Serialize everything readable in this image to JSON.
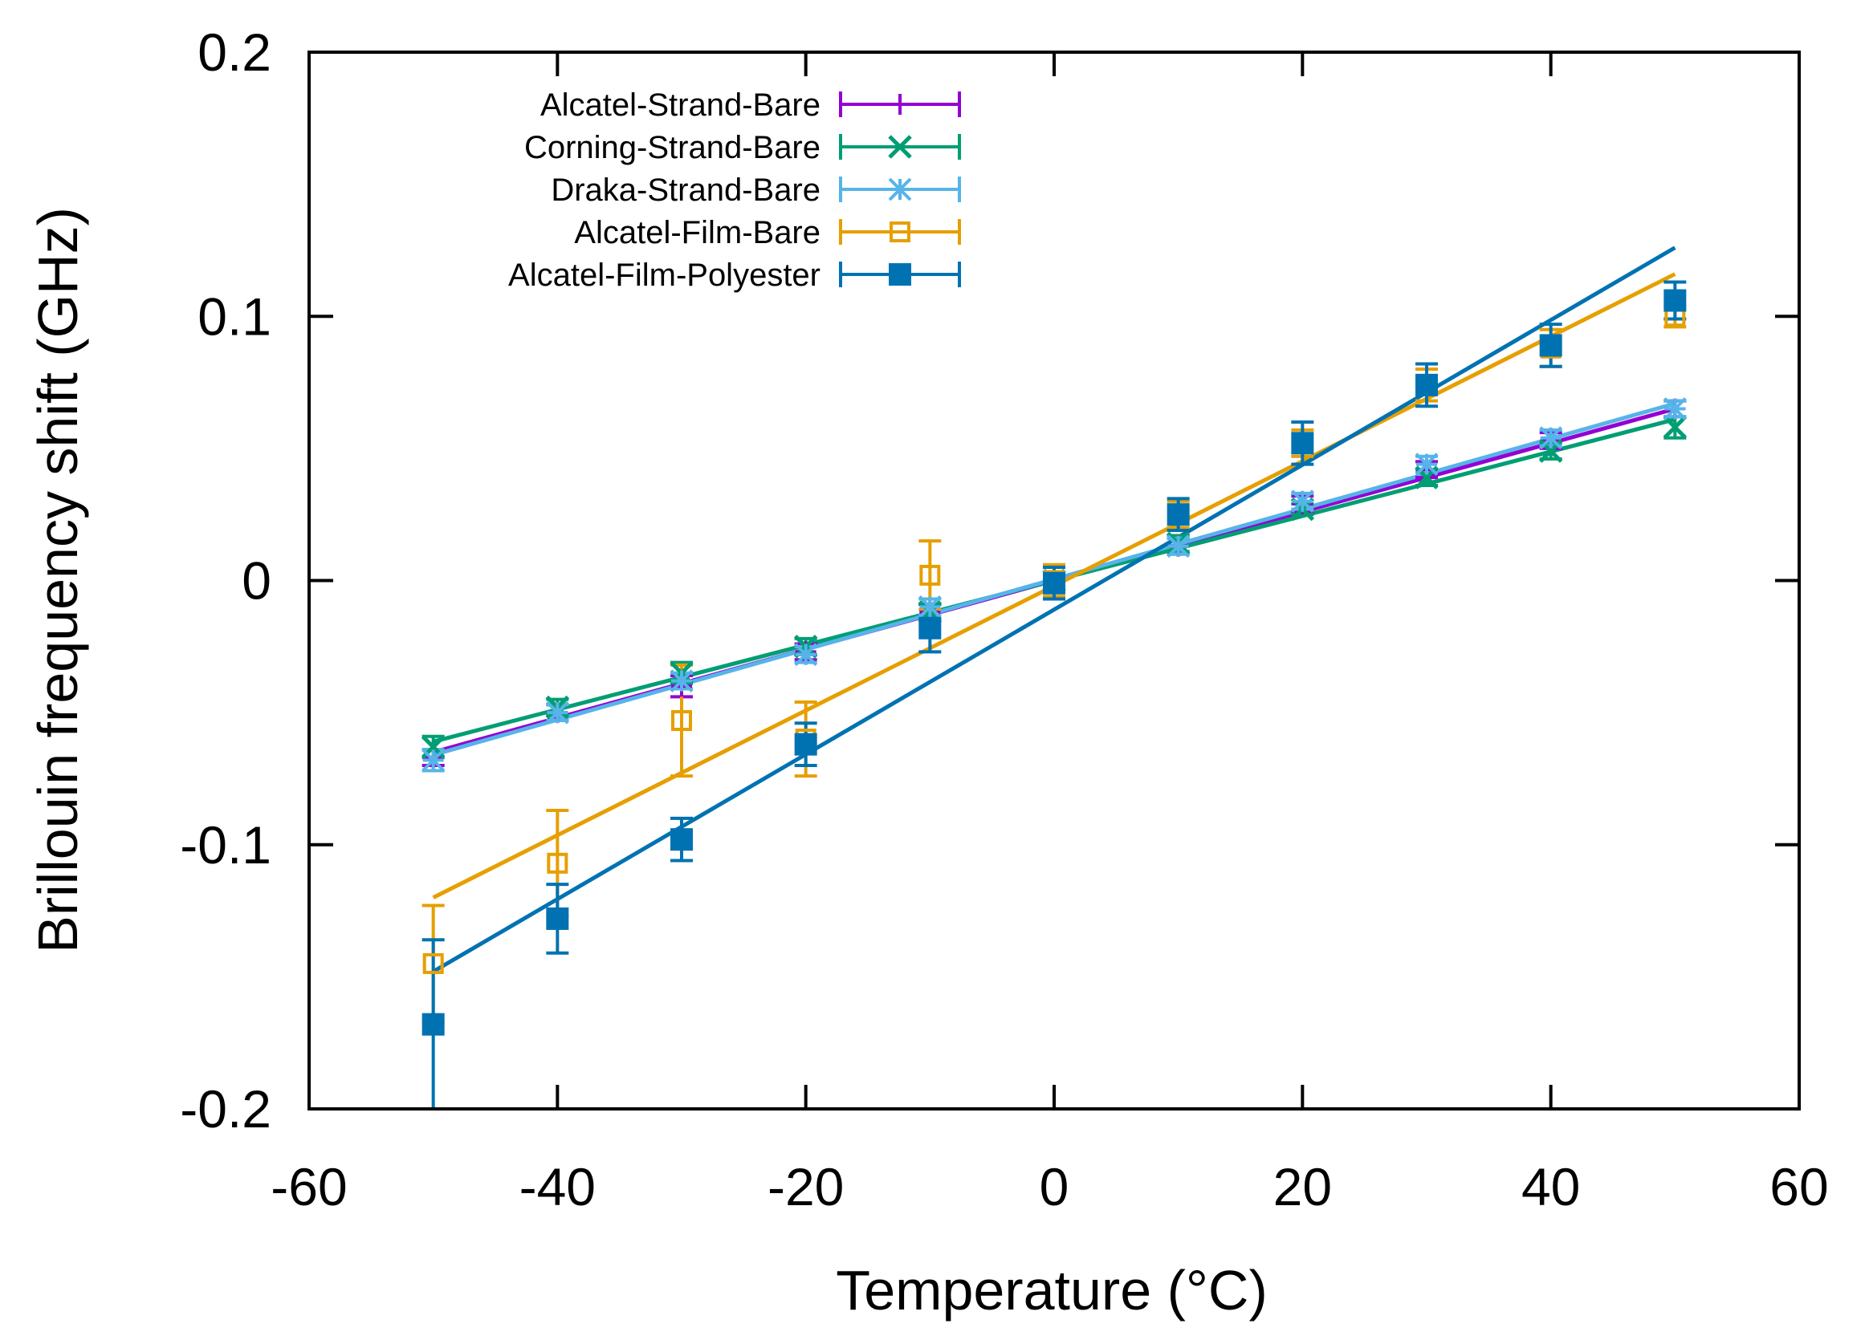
{
  "chart_data": {
    "type": "scatter",
    "title": "",
    "xlabel": "Temperature (°C)",
    "ylabel": "Brillouin frequency shift (GHz)",
    "xlim": [
      -60,
      60
    ],
    "ylim": [
      -0.2,
      0.2
    ],
    "xticks": [
      -60,
      -40,
      -20,
      0,
      20,
      40,
      60
    ],
    "yticks": [
      -0.2,
      -0.1,
      0,
      0.1,
      0.2
    ],
    "xtick_labels": [
      "-60",
      "-40",
      "-20",
      "0",
      "20",
      "40",
      "60"
    ],
    "ytick_labels": [
      "-0.2",
      "-0.1",
      "0",
      "0.1",
      "0.2"
    ],
    "grid": false,
    "legend_position": "top-left",
    "series": [
      {
        "name": "Alcatel-Strand-Bare",
        "color": "#9400D3",
        "marker": "plus",
        "x": [
          -50,
          -40,
          -30,
          -20,
          -10,
          0,
          10,
          20,
          30,
          40,
          50
        ],
        "y": [
          -0.067,
          -0.05,
          -0.04,
          -0.027,
          -0.012,
          0.0,
          0.013,
          0.029,
          0.042,
          0.053,
          0.065
        ],
        "yerr": [
          0.003,
          0.003,
          0.004,
          0.003,
          0.003,
          0.003,
          0.003,
          0.003,
          0.003,
          0.003,
          0.003
        ],
        "fit": {
          "x": [
            -50,
            50
          ],
          "y": [
            -0.065,
            0.065
          ]
        }
      },
      {
        "name": "Corning-Strand-Bare",
        "color": "#009E73",
        "marker": "cross",
        "x": [
          -50,
          -40,
          -30,
          -20,
          -10,
          0,
          10,
          20,
          30,
          40,
          50
        ],
        "y": [
          -0.063,
          -0.048,
          -0.035,
          -0.025,
          -0.012,
          0.0,
          0.014,
          0.027,
          0.039,
          0.049,
          0.058
        ],
        "yerr": [
          0.004,
          0.003,
          0.004,
          0.003,
          0.003,
          0.003,
          0.003,
          0.002,
          0.003,
          0.003,
          0.004
        ],
        "fit": {
          "x": [
            -50,
            50
          ],
          "y": [
            -0.061,
            0.061
          ]
        }
      },
      {
        "name": "Draka-Strand-Bare",
        "color": "#56B4E9",
        "marker": "star",
        "x": [
          -50,
          -40,
          -30,
          -20,
          -10,
          0,
          10,
          20,
          30,
          40,
          50
        ],
        "y": [
          -0.068,
          -0.05,
          -0.038,
          -0.028,
          -0.01,
          0.0,
          0.013,
          0.03,
          0.044,
          0.054,
          0.065
        ],
        "yerr": [
          0.004,
          0.003,
          0.003,
          0.003,
          0.003,
          0.003,
          0.003,
          0.003,
          0.003,
          0.003,
          0.003
        ],
        "fit": {
          "x": [
            -50,
            50
          ],
          "y": [
            -0.066,
            0.067
          ]
        }
      },
      {
        "name": "Alcatel-Film-Bare",
        "color": "#E69F00",
        "marker": "open-square",
        "x": [
          -50,
          -40,
          -30,
          -20,
          -10,
          0,
          10,
          20,
          30,
          40,
          50
        ],
        "y": [
          -0.145,
          -0.107,
          -0.053,
          -0.06,
          0.002,
          0.0,
          0.025,
          0.052,
          0.074,
          0.088,
          0.1
        ],
        "yerr": [
          0.022,
          0.02,
          0.021,
          0.014,
          0.013,
          0.006,
          0.005,
          0.005,
          0.006,
          0.007,
          0.004
        ],
        "fit": {
          "x": [
            -50,
            50
          ],
          "y": [
            -0.12,
            0.116
          ]
        }
      },
      {
        "name": "Alcatel-Film-Polyester",
        "color": "#0072B2",
        "marker": "filled-square",
        "x": [
          -50,
          -40,
          -30,
          -20,
          -10,
          0,
          10,
          20,
          30,
          40,
          50
        ],
        "y": [
          -0.168,
          -0.128,
          -0.098,
          -0.062,
          -0.018,
          -0.001,
          0.025,
          0.052,
          0.074,
          0.089,
          0.106
        ],
        "yerr": [
          0.032,
          0.013,
          0.008,
          0.008,
          0.009,
          0.006,
          0.006,
          0.008,
          0.008,
          0.008,
          0.007
        ],
        "fit": {
          "x": [
            -50,
            50
          ],
          "y": [
            -0.148,
            0.126
          ]
        }
      }
    ]
  }
}
